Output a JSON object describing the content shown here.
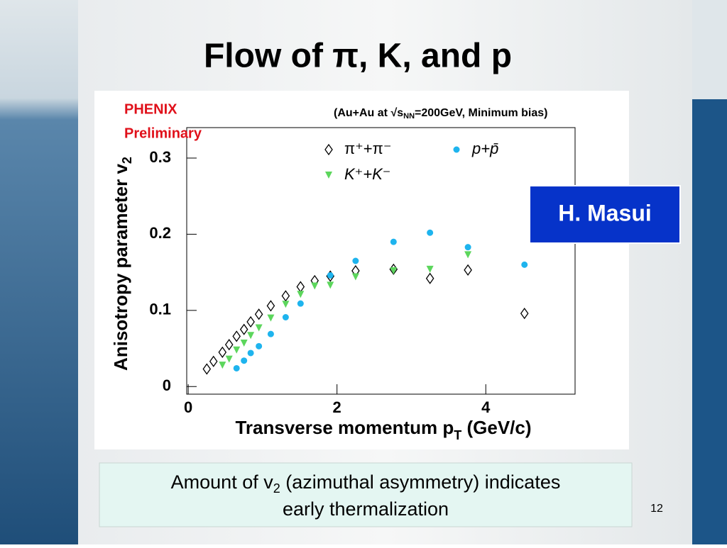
{
  "slide": {
    "title": "Flow of π, K, and p",
    "author": "H. Masui",
    "caption": {
      "line1": [
        "Amount of v",
        "2",
        " (azimuthal asymmetry) indicates"
      ],
      "line2": "early thermalization"
    },
    "page_number": "12"
  },
  "chart_data": {
    "type": "scatter",
    "annotations": [
      "PHENIX",
      "Preliminary"
    ],
    "subtitle": [
      "(Au+Au at √s",
      "NN",
      "=200GeV, Minimum bias)"
    ],
    "x_label": [
      "Transverse momentum p",
      "T",
      " (GeV/c)"
    ],
    "y_label": [
      "Anisotropy parameter v",
      "2"
    ],
    "xlim": [
      -0.02,
      5.2
    ],
    "xticks": [
      0,
      2,
      4
    ],
    "ylim": [
      -0.01,
      0.34
    ],
    "yticks": [
      0,
      0.1,
      0.2,
      0.3
    ],
    "series": [
      {
        "name": "π⁺+π⁻",
        "color": "#000000",
        "marker": "diamond-open",
        "x": [
          0.25,
          0.34,
          0.46,
          0.55,
          0.65,
          0.75,
          0.84,
          0.95,
          1.11,
          1.31,
          1.51,
          1.7,
          1.91,
          2.25,
          2.76,
          3.25,
          3.76,
          4.52
        ],
        "values": [
          0.023,
          0.033,
          0.045,
          0.055,
          0.066,
          0.075,
          0.085,
          0.095,
          0.106,
          0.119,
          0.131,
          0.139,
          0.145,
          0.152,
          0.154,
          0.142,
          0.153,
          0.096
        ]
      },
      {
        "name": "K⁺+K⁻",
        "color": "#5cd65c",
        "marker": "triangle-down",
        "x": [
          0.46,
          0.55,
          0.65,
          0.75,
          0.84,
          0.95,
          1.11,
          1.31,
          1.51,
          1.7,
          1.91,
          2.25,
          2.76,
          3.25,
          3.76
        ],
        "values": [
          0.028,
          0.036,
          0.048,
          0.057,
          0.067,
          0.077,
          0.09,
          0.108,
          0.121,
          0.132,
          0.133,
          0.144,
          0.152,
          0.154,
          0.173
        ]
      },
      {
        "name": "p+p̄",
        "color": "#1eb4ee",
        "marker": "circle",
        "x": [
          0.65,
          0.75,
          0.84,
          0.95,
          1.11,
          1.31,
          1.51,
          1.91,
          2.25,
          2.76,
          3.25,
          3.76,
          4.52
        ],
        "values": [
          0.024,
          0.034,
          0.044,
          0.053,
          0.069,
          0.091,
          0.109,
          0.146,
          0.165,
          0.19,
          0.202,
          0.183,
          0.16
        ]
      }
    ]
  }
}
